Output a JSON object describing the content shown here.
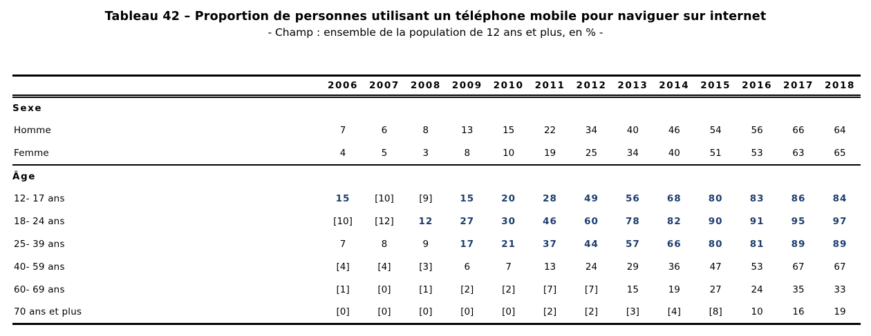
{
  "title": "Tableau 42 – Proportion de personnes utilisant un téléphone mobile pour naviguer sur internet",
  "subtitle": "- Champ : ensemble de la population de 12 ans et plus, en % -",
  "colors": {
    "emphasis_blue": "#1C3D6E",
    "text": "#000000",
    "background": "#FFFFFF"
  },
  "table": {
    "year_columns": [
      "2006",
      "2007",
      "2008",
      "2009",
      "2010",
      "2011",
      "2012",
      "2013",
      "2014",
      "2015",
      "2016",
      "2017",
      "2018"
    ],
    "sections": [
      {
        "header": "Sexe",
        "rows": [
          {
            "label": "Homme",
            "values": [
              "7",
              "6",
              "8",
              "13",
              "15",
              "22",
              "34",
              "40",
              "46",
              "54",
              "56",
              "66",
              "64"
            ],
            "emphasis": [
              false,
              false,
              false,
              false,
              false,
              false,
              false,
              false,
              false,
              false,
              false,
              false,
              false
            ]
          },
          {
            "label": "Femme",
            "values": [
              "4",
              "5",
              "3",
              "8",
              "10",
              "19",
              "25",
              "34",
              "40",
              "51",
              "53",
              "63",
              "65"
            ],
            "emphasis": [
              false,
              false,
              false,
              false,
              false,
              false,
              false,
              false,
              false,
              false,
              false,
              false,
              false
            ]
          }
        ]
      },
      {
        "header": "Âge",
        "rows": [
          {
            "label": "12- 17 ans",
            "values": [
              "15",
              "[10]",
              "[9]",
              "15",
              "20",
              "28",
              "49",
              "56",
              "68",
              "80",
              "83",
              "86",
              "84"
            ],
            "emphasis": [
              true,
              false,
              false,
              true,
              true,
              true,
              true,
              true,
              true,
              true,
              true,
              true,
              true
            ]
          },
          {
            "label": "18- 24 ans",
            "values": [
              "[10]",
              "[12]",
              "12",
              "27",
              "30",
              "46",
              "60",
              "78",
              "82",
              "90",
              "91",
              "95",
              "97"
            ],
            "emphasis": [
              false,
              false,
              true,
              true,
              true,
              true,
              true,
              true,
              true,
              true,
              true,
              true,
              true
            ]
          },
          {
            "label": "25- 39 ans",
            "values": [
              "7",
              "8",
              "9",
              "17",
              "21",
              "37",
              "44",
              "57",
              "66",
              "80",
              "81",
              "89",
              "89"
            ],
            "emphasis": [
              false,
              false,
              false,
              true,
              true,
              true,
              true,
              true,
              true,
              true,
              true,
              true,
              true
            ]
          },
          {
            "label": "40- 59 ans",
            "values": [
              "[4]",
              "[4]",
              "[3]",
              "6",
              "7",
              "13",
              "24",
              "29",
              "36",
              "47",
              "53",
              "67",
              "67"
            ],
            "emphasis": [
              false,
              false,
              false,
              false,
              false,
              false,
              false,
              false,
              false,
              false,
              false,
              false,
              false
            ]
          },
          {
            "label": "60- 69 ans",
            "values": [
              "[1]",
              "[0]",
              "[1]",
              "[2]",
              "[2]",
              "[7]",
              "[7]",
              "15",
              "19",
              "27",
              "24",
              "35",
              "33"
            ],
            "emphasis": [
              false,
              false,
              false,
              false,
              false,
              false,
              false,
              false,
              false,
              false,
              false,
              false,
              false
            ]
          },
          {
            "label": "70 ans et plus",
            "values": [
              "[0]",
              "[0]",
              "[0]",
              "[0]",
              "[0]",
              "[2]",
              "[2]",
              "[3]",
              "[4]",
              "[8]",
              "10",
              "16",
              "19"
            ],
            "emphasis": [
              false,
              false,
              false,
              false,
              false,
              false,
              false,
              false,
              false,
              false,
              false,
              false,
              false
            ]
          }
        ]
      }
    ]
  }
}
